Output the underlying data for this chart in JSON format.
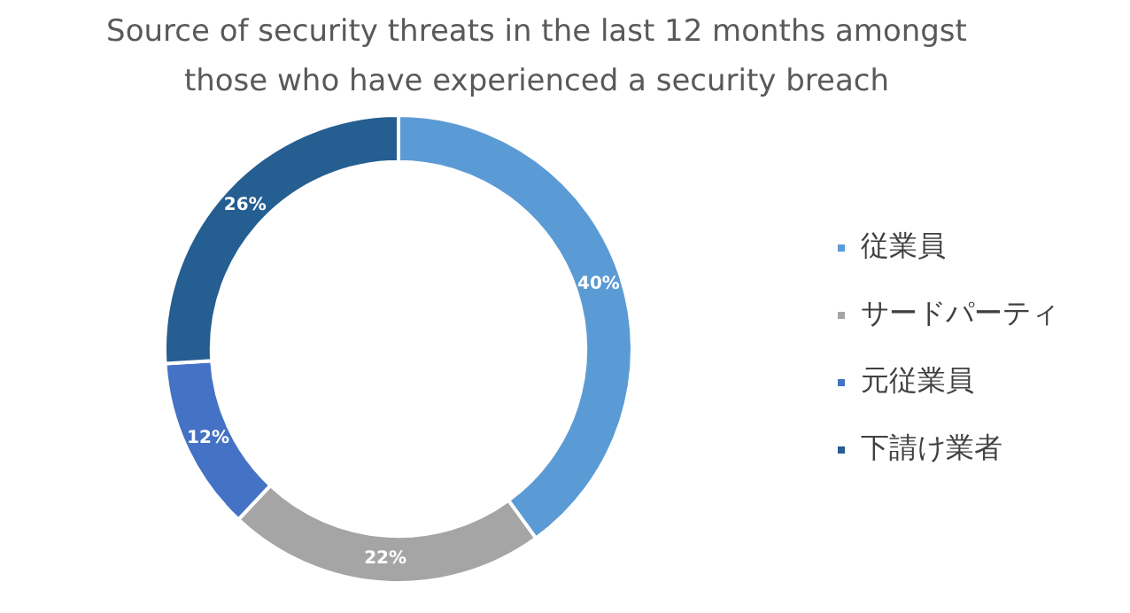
{
  "chart_data": {
    "type": "donut",
    "title": "Source of security threats in the last 12 months amongst those who have experienced a security breach",
    "categories": [
      "従業員",
      "サードパーティ",
      "元従業員",
      "下請け業者"
    ],
    "values": [
      40,
      22,
      12,
      26
    ],
    "colors": [
      "#5b9bd5",
      "#a5a5a5",
      "#4472c4",
      "#255e91"
    ],
    "value_labels": [
      "40%",
      "22%",
      "12%",
      "26%"
    ],
    "legend": "right"
  }
}
